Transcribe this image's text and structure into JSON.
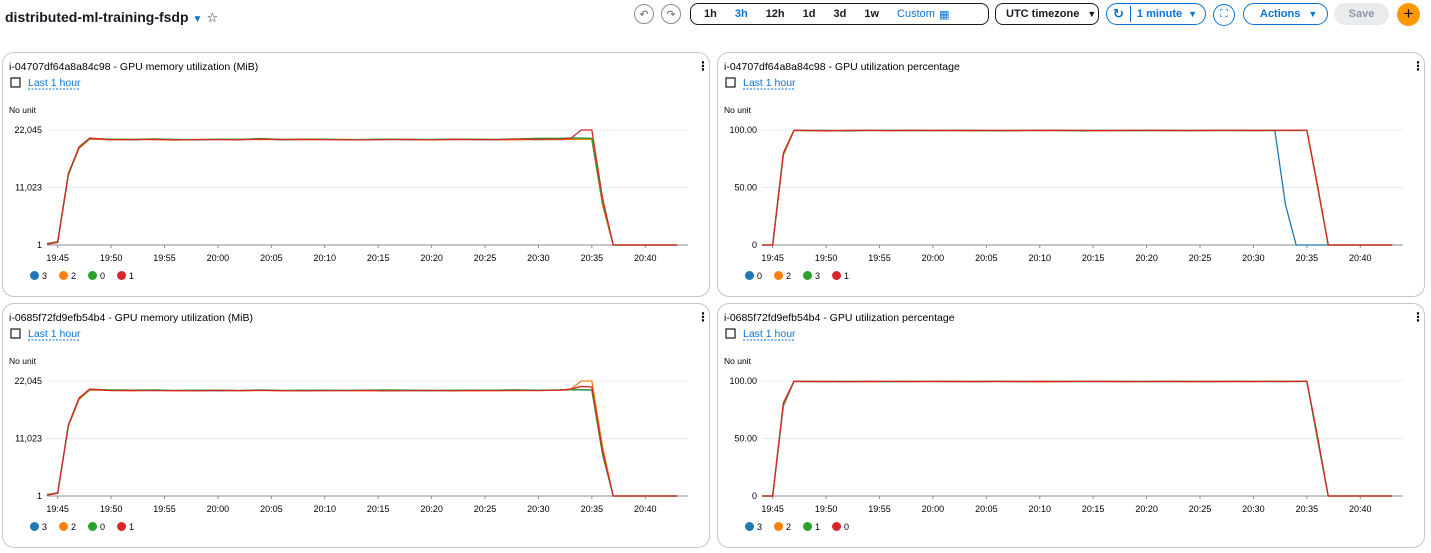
{
  "header": {
    "title": "distributed-ml-training-fsdp",
    "time_ranges": [
      "1h",
      "3h",
      "12h",
      "1d",
      "3d",
      "1w"
    ],
    "selected_range": 1,
    "custom": "Custom",
    "timezone": "UTC timezone",
    "refresh": "1 minute",
    "actions": "Actions",
    "save": "Save"
  },
  "chart_data": [
    {
      "type": "line",
      "title": "i-04707df64a8a84c98 - GPU memory utilization (MiB)",
      "period": "Last 1 hour",
      "unit": "No unit",
      "x": [
        "19:44",
        "19:45",
        "19:46",
        "19:47",
        "19:48",
        "19:50",
        "19:52",
        "19:54",
        "19:56",
        "19:58",
        "20:00",
        "20:02",
        "20:04",
        "20:06",
        "20:08",
        "20:10",
        "20:12",
        "20:14",
        "20:16",
        "20:18",
        "20:20",
        "20:22",
        "20:24",
        "20:26",
        "20:28",
        "20:30",
        "20:32",
        "20:33",
        "20:34",
        "20:35",
        "20:36",
        "20:37",
        "20:40",
        "20:43"
      ],
      "xlim": [
        "19:44",
        "20:44"
      ],
      "xticks": [
        "19:45",
        "19:50",
        "19:55",
        "20:00",
        "20:05",
        "20:10",
        "20:15",
        "20:20",
        "20:25",
        "20:30",
        "20:35",
        "20:40"
      ],
      "ylim": [
        1,
        22045
      ],
      "yticks": [
        1,
        {
          "value": 11023,
          "label": "11,023"
        },
        {
          "value": 22045,
          "label": "22,045"
        }
      ],
      "grid": true,
      "series": [
        {
          "name": "3",
          "color": "#1f77b4",
          "values": [
            300,
            650,
            13600,
            18600,
            20350,
            20250,
            20150,
            20300,
            20200,
            20150,
            20250,
            20200,
            20350,
            20150,
            20200,
            20250,
            20150,
            20200,
            20250,
            20150,
            20200,
            20250,
            20200,
            20150,
            20250,
            20200,
            20250,
            20300,
            20300,
            20250,
            7800,
            1,
            1,
            1
          ]
        },
        {
          "name": "2",
          "color": "#ff7f0e",
          "values": [
            250,
            600,
            13500,
            18500,
            20300,
            20150,
            20250,
            20200,
            20100,
            20250,
            20200,
            20300,
            20200,
            20250,
            20150,
            20200,
            20250,
            20150,
            20300,
            20200,
            20150,
            20200,
            20250,
            20200,
            20150,
            20250,
            20200,
            20250,
            20250,
            20300,
            7600,
            1,
            1,
            1
          ]
        },
        {
          "name": "0",
          "color": "#2ca02c",
          "values": [
            200,
            550,
            13400,
            18700,
            20400,
            20300,
            20250,
            20350,
            20250,
            20200,
            20300,
            20250,
            20400,
            20250,
            20300,
            20300,
            20200,
            20250,
            20300,
            20250,
            20250,
            20300,
            20300,
            20250,
            20350,
            20450,
            20450,
            20500,
            20500,
            20450,
            8200,
            1,
            1,
            1
          ]
        },
        {
          "name": "1",
          "color": "#d62728",
          "values": [
            150,
            500,
            13700,
            18800,
            20500,
            20200,
            20200,
            20250,
            20150,
            20200,
            20200,
            20150,
            20300,
            20200,
            20250,
            20200,
            20150,
            20150,
            20200,
            20250,
            20150,
            20250,
            20200,
            20200,
            20300,
            20250,
            20300,
            20400,
            22045,
            22045,
            9000,
            1,
            1,
            1
          ]
        }
      ]
    },
    {
      "type": "line",
      "title": "i-04707df64a8a84c98 - GPU utilization percentage",
      "period": "Last 1 hour",
      "unit": "No unit",
      "x": [
        "19:44",
        "19:45",
        "19:46",
        "19:47",
        "19:48",
        "19:50",
        "19:52",
        "19:54",
        "19:56",
        "19:58",
        "20:00",
        "20:02",
        "20:04",
        "20:06",
        "20:08",
        "20:10",
        "20:12",
        "20:14",
        "20:16",
        "20:18",
        "20:20",
        "20:22",
        "20:24",
        "20:26",
        "20:28",
        "20:30",
        "20:32",
        "20:33",
        "20:34",
        "20:35",
        "20:36",
        "20:37",
        "20:40",
        "20:43"
      ],
      "xlim": [
        "19:44",
        "20:44"
      ],
      "xticks": [
        "19:45",
        "19:50",
        "19:55",
        "20:00",
        "20:05",
        "20:10",
        "20:15",
        "20:20",
        "20:25",
        "20:30",
        "20:35",
        "20:40"
      ],
      "ylim": [
        0,
        100
      ],
      "yticks": [
        0,
        {
          "value": 50,
          "label": "50.00"
        },
        {
          "value": 100,
          "label": "100.00"
        }
      ],
      "grid": true,
      "series": [
        {
          "name": "0",
          "color": "#1f77b4",
          "values": [
            0,
            0,
            80,
            99.8,
            99.5,
            99.6,
            99.2,
            99.8,
            99.5,
            99.7,
            99.4,
            99.8,
            99.6,
            99.3,
            99.7,
            99.5,
            99.8,
            99.2,
            99.6,
            99.7,
            99.5,
            99.8,
            99.4,
            99.6,
            99.7,
            99.5,
            99.8,
            35,
            0,
            0,
            0,
            0,
            0,
            0
          ]
        },
        {
          "name": "2",
          "color": "#ff7f0e",
          "values": [
            0,
            0,
            78,
            99.6,
            99.4,
            99.2,
            99.7,
            99.5,
            99.6,
            99.3,
            99.7,
            99.5,
            99.2,
            99.6,
            99.8,
            99.4,
            99.6,
            99.5,
            99.3,
            99.7,
            99.6,
            99.4,
            99.7,
            99.5,
            99.6,
            99.4,
            99.7,
            99.6,
            99.5,
            99.8,
            50,
            0,
            0,
            0
          ]
        },
        {
          "name": "3",
          "color": "#2ca02c",
          "values": [
            0,
            0,
            79,
            99.7,
            99.6,
            99.5,
            99.4,
            99.6,
            99.8,
            99.5,
            99.6,
            99.7,
            99.5,
            99.4,
            99.6,
            99.7,
            99.5,
            99.6,
            99.7,
            99.4,
            99.6,
            99.5,
            99.6,
            99.7,
            99.5,
            99.6,
            99.5,
            99.7,
            99.6,
            99.7,
            51,
            0,
            0,
            0
          ]
        },
        {
          "name": "1",
          "color": "#d62728",
          "values": [
            0,
            0,
            80,
            99.9,
            99.7,
            99.4,
            99.6,
            99.7,
            99.4,
            99.8,
            99.6,
            99.5,
            99.7,
            99.6,
            99.4,
            99.8,
            99.6,
            99.7,
            99.5,
            99.6,
            99.7,
            99.6,
            99.5,
            99.6,
            99.8,
            99.6,
            99.7,
            99.8,
            99.8,
            99.9,
            52,
            0,
            0,
            0
          ]
        }
      ]
    },
    {
      "type": "line",
      "title": "i-0685f72fd9efb54b4 - GPU memory utilization (MiB)",
      "period": "Last 1 hour",
      "unit": "No unit",
      "x": [
        "19:44",
        "19:45",
        "19:46",
        "19:47",
        "19:48",
        "19:50",
        "19:52",
        "19:54",
        "19:56",
        "19:58",
        "20:00",
        "20:02",
        "20:04",
        "20:06",
        "20:08",
        "20:10",
        "20:12",
        "20:14",
        "20:16",
        "20:18",
        "20:20",
        "20:22",
        "20:24",
        "20:26",
        "20:28",
        "20:30",
        "20:32",
        "20:33",
        "20:34",
        "20:35",
        "20:36",
        "20:37",
        "20:40",
        "20:43"
      ],
      "xlim": [
        "19:44",
        "20:44"
      ],
      "xticks": [
        "19:45",
        "19:50",
        "19:55",
        "20:00",
        "20:05",
        "20:10",
        "20:15",
        "20:20",
        "20:25",
        "20:30",
        "20:35",
        "20:40"
      ],
      "ylim": [
        1,
        22045
      ],
      "yticks": [
        1,
        {
          "value": 11023,
          "label": "11,023"
        },
        {
          "value": 22045,
          "label": "22,045"
        }
      ],
      "grid": true,
      "series": [
        {
          "name": "3",
          "color": "#1f77b4",
          "values": [
            280,
            620,
            13500,
            18600,
            20400,
            20300,
            20200,
            20250,
            20200,
            20250,
            20150,
            20200,
            20300,
            20200,
            20250,
            20200,
            20250,
            20200,
            20250,
            20200,
            20150,
            20250,
            20200,
            20250,
            20250,
            20250,
            20300,
            20350,
            20350,
            20300,
            8000,
            1,
            1,
            1
          ]
        },
        {
          "name": "2",
          "color": "#ff7f0e",
          "values": [
            260,
            600,
            13450,
            18500,
            20300,
            20250,
            20150,
            20300,
            20150,
            20200,
            20250,
            20150,
            20250,
            20150,
            20200,
            20250,
            20200,
            20150,
            20200,
            20250,
            20200,
            20200,
            20150,
            20200,
            20200,
            20250,
            20250,
            20400,
            22045,
            22045,
            9500,
            1,
            1,
            1
          ]
        },
        {
          "name": "0",
          "color": "#2ca02c",
          "values": [
            220,
            580,
            13400,
            18700,
            20450,
            20350,
            20300,
            20350,
            20250,
            20300,
            20300,
            20250,
            20350,
            20250,
            20300,
            20300,
            20250,
            20300,
            20350,
            20300,
            20250,
            20300,
            20300,
            20300,
            20350,
            20300,
            20350,
            20400,
            20400,
            20350,
            8100,
            1,
            1,
            1
          ]
        },
        {
          "name": "1",
          "color": "#d62728",
          "values": [
            180,
            520,
            13650,
            18800,
            20500,
            20200,
            20250,
            20200,
            20200,
            20150,
            20250,
            20200,
            20250,
            20200,
            20150,
            20200,
            20200,
            20250,
            20150,
            20200,
            20250,
            20150,
            20250,
            20200,
            20250,
            20200,
            20300,
            20500,
            21000,
            20900,
            8600,
            1,
            1,
            1
          ]
        }
      ]
    },
    {
      "type": "line",
      "title": "i-0685f72fd9efb54b4 - GPU utilization percentage",
      "period": "Last 1 hour",
      "unit": "No unit",
      "x": [
        "19:44",
        "19:45",
        "19:46",
        "19:47",
        "19:48",
        "19:50",
        "19:52",
        "19:54",
        "19:56",
        "19:58",
        "20:00",
        "20:02",
        "20:04",
        "20:06",
        "20:08",
        "20:10",
        "20:12",
        "20:14",
        "20:16",
        "20:18",
        "20:20",
        "20:22",
        "20:24",
        "20:26",
        "20:28",
        "20:30",
        "20:32",
        "20:33",
        "20:34",
        "20:35",
        "20:36",
        "20:37",
        "20:40",
        "20:43"
      ],
      "xlim": [
        "19:44",
        "20:44"
      ],
      "xticks": [
        "19:45",
        "19:50",
        "19:55",
        "20:00",
        "20:05",
        "20:10",
        "20:15",
        "20:20",
        "20:25",
        "20:30",
        "20:35",
        "20:40"
      ],
      "ylim": [
        0,
        100
      ],
      "yticks": [
        0,
        {
          "value": 50,
          "label": "50.00"
        },
        {
          "value": 100,
          "label": "100.00"
        }
      ],
      "grid": true,
      "series": [
        {
          "name": "3",
          "color": "#1f77b4",
          "values": [
            0,
            0,
            78,
            99.6,
            99.5,
            99.4,
            99.7,
            99.5,
            99.6,
            99.7,
            99.5,
            99.6,
            99.4,
            99.7,
            99.6,
            99.5,
            99.7,
            99.6,
            99.5,
            99.6,
            99.7,
            99.5,
            99.6,
            99.4,
            99.6,
            99.7,
            99.5,
            99.6,
            99.7,
            99.8,
            50,
            0,
            0,
            0
          ]
        },
        {
          "name": "2",
          "color": "#ff7f0e",
          "values": [
            0,
            0,
            79,
            99.7,
            99.4,
            99.6,
            99.5,
            99.3,
            99.7,
            99.5,
            99.6,
            99.4,
            99.7,
            99.5,
            99.6,
            99.2,
            99.5,
            99.7,
            99.6,
            99.4,
            99.5,
            99.7,
            99.3,
            99.6,
            99.5,
            99.6,
            99.7,
            99.5,
            99.6,
            99.7,
            51,
            0,
            0,
            0
          ]
        },
        {
          "name": "1",
          "color": "#2ca02c",
          "values": [
            0,
            0,
            80,
            99.8,
            99.6,
            99.5,
            99.6,
            99.7,
            99.4,
            99.6,
            99.7,
            99.5,
            99.6,
            99.6,
            99.4,
            99.7,
            99.6,
            99.5,
            99.7,
            99.6,
            99.4,
            99.6,
            99.7,
            99.5,
            99.7,
            99.6,
            99.6,
            99.7,
            99.5,
            99.8,
            49,
            0,
            0,
            0
          ]
        },
        {
          "name": "0",
          "color": "#d62728",
          "values": [
            0,
            0,
            81,
            99.9,
            99.7,
            99.6,
            99.4,
            99.6,
            99.7,
            99.5,
            99.7,
            99.6,
            99.5,
            99.7,
            99.6,
            99.6,
            99.5,
            99.7,
            99.6,
            99.5,
            99.6,
            99.7,
            99.5,
            99.6,
            99.6,
            99.5,
            99.7,
            99.6,
            99.7,
            99.9,
            52,
            0,
            0,
            0
          ]
        }
      ]
    }
  ]
}
